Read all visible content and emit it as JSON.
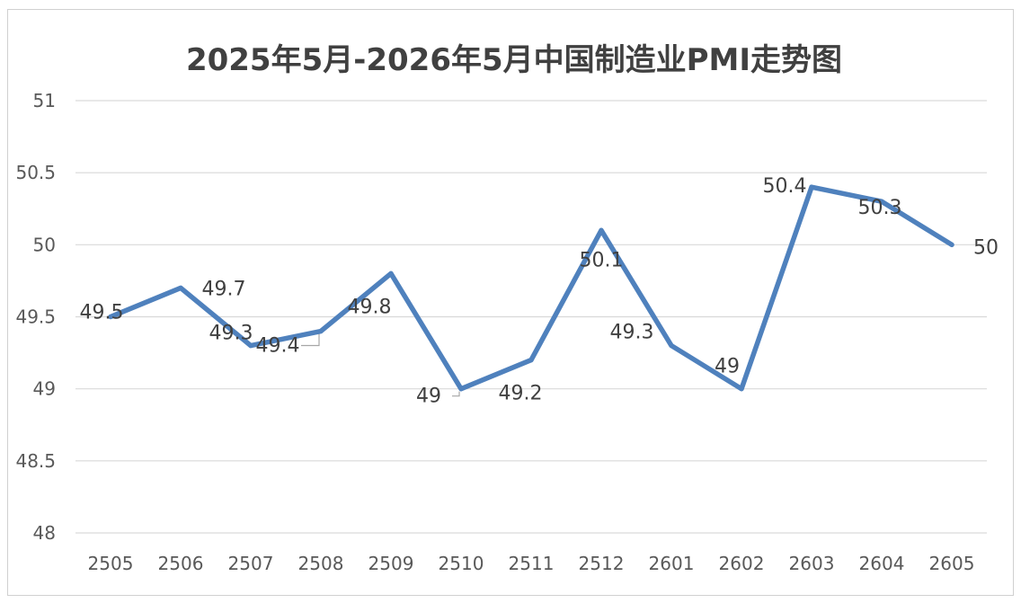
{
  "chart_data": {
    "type": "line",
    "title": "2025年5月-2026年5月中国制造业PMI走势图",
    "categories": [
      "2505",
      "2506",
      "2507",
      "2508",
      "2509",
      "2510",
      "2511",
      "2512",
      "2601",
      "2602",
      "2603",
      "2604",
      "2605"
    ],
    "series": [
      {
        "values": [
          49.5,
          49.7,
          49.3,
          49.4,
          49.8,
          49.0,
          49.2,
          50.1,
          49.3,
          49.0,
          50.4,
          50.3,
          50.0
        ],
        "labels": [
          "49.5",
          "49.7",
          "49.3",
          "49.4",
          "49.8",
          "49",
          "49.2",
          "50.1",
          "49.3",
          "49",
          "50.4",
          "50.3",
          "50"
        ]
      }
    ],
    "yticks": [
      "48",
      "48.5",
      "49",
      "49.5",
      "50",
      "50.5",
      "51"
    ],
    "ylim": [
      48,
      51
    ],
    "grid": true,
    "legend": "none",
    "colors": {
      "line": "#4F81BD",
      "grid": "#d9d9d9",
      "leader": "#a6a6a6"
    }
  }
}
